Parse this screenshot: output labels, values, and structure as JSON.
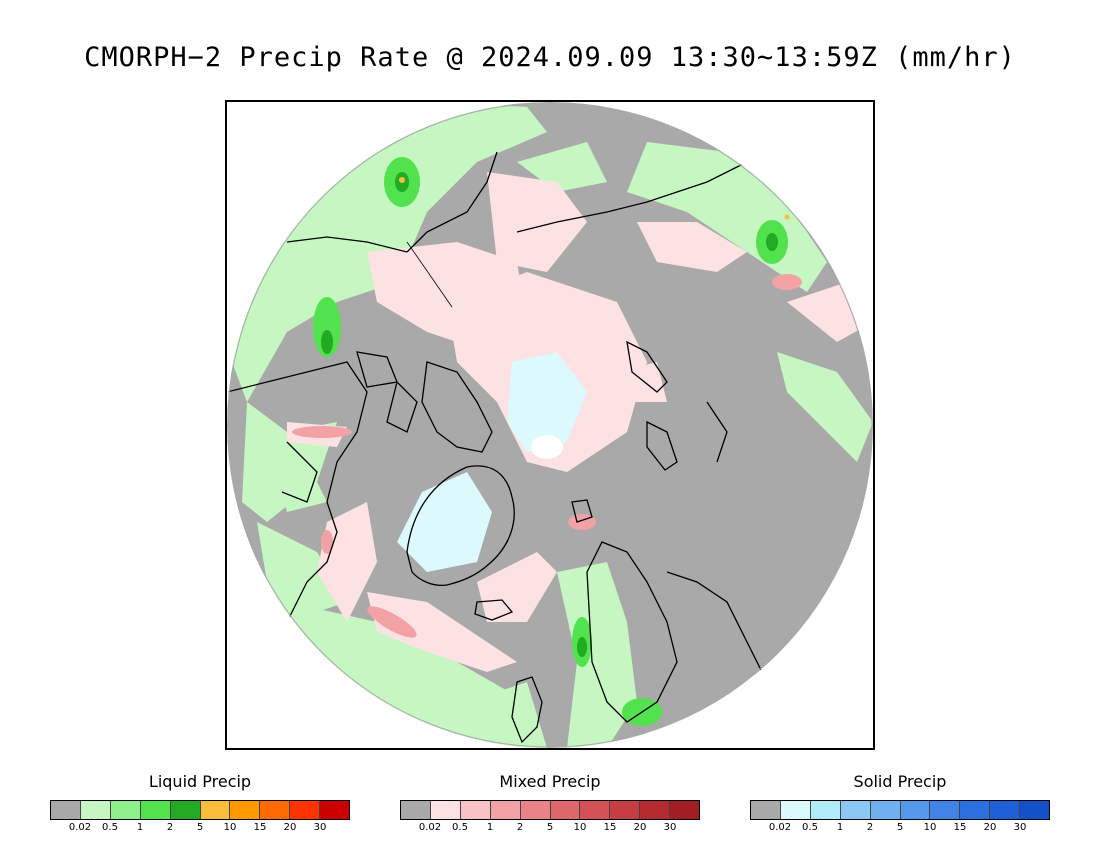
{
  "title": "CMORPH−2 Precip Rate @ 2024.09.09 13:30∼13:59Z (mm/hr)",
  "legends": [
    {
      "name": "Liquid Precip",
      "colors": [
        "#a9a9a9",
        "#c6f7c2",
        "#8ef08a",
        "#52e24e",
        "#22aa22",
        "#f8be3c",
        "#ff9900",
        "#ff6a00",
        "#ff3300",
        "#cc0000"
      ],
      "ticks": [
        "0.02",
        "0.5",
        "1",
        "2",
        "5",
        "10",
        "15",
        "20",
        "30"
      ]
    },
    {
      "name": "Mixed Precip",
      "colors": [
        "#a9a9a9",
        "#fde2e4",
        "#f9c3c6",
        "#f2a2a5",
        "#e98387",
        "#df676b",
        "#d45256",
        "#c63d42",
        "#b52a2f",
        "#a31e23"
      ],
      "ticks": [
        "0.02",
        "0.5",
        "1",
        "2",
        "5",
        "10",
        "15",
        "20",
        "30"
      ]
    },
    {
      "name": "Solid Precip",
      "colors": [
        "#a9a9a9",
        "#dcfafd",
        "#b0ecf7",
        "#8cc8f5",
        "#6fb0f0",
        "#5599ec",
        "#3f84e6",
        "#2a70df",
        "#1d5fd6",
        "#1450c8"
      ],
      "ticks": [
        "0.02",
        "0.5",
        "1",
        "2",
        "5",
        "10",
        "15",
        "20",
        "30"
      ]
    }
  ],
  "map": {
    "background_color": "#a9a9a9",
    "coastline_color": "#000000",
    "projection": "polar stereographic, North Pole centered"
  }
}
